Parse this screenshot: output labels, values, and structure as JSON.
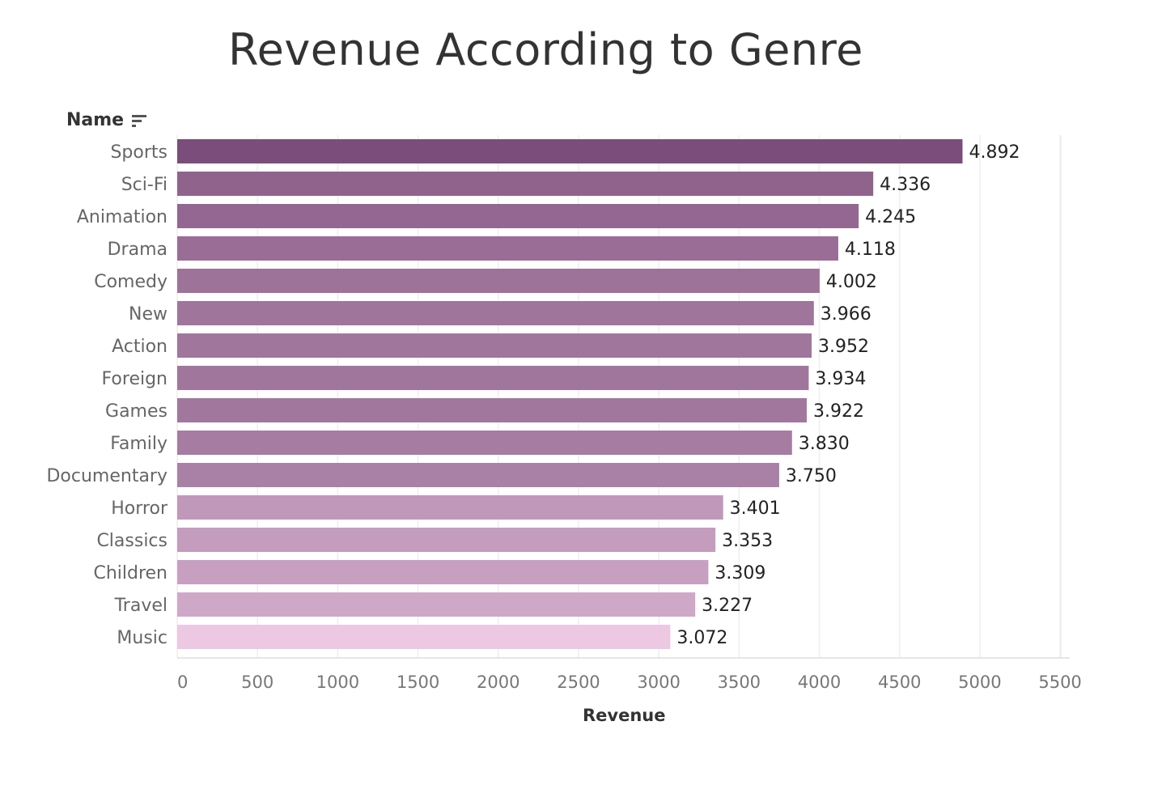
{
  "header": {
    "row_field_label": "Name",
    "sort_icon": "sort-descending-icon"
  },
  "colors": {
    "bar_max": "#7b4d7a",
    "bar_min": "#ecc8e3",
    "grid": "#eeeeee",
    "axis": "#dddddd",
    "category_text": "#666666",
    "value_text": "#222222",
    "title_text": "#333333"
  },
  "chart_data": {
    "type": "bar",
    "orientation": "horizontal",
    "title": "Revenue According to Genre",
    "xlabel": "Revenue",
    "ylabel": "Name",
    "categories": [
      "Sports",
      "Sci-Fi",
      "Animation",
      "Drama",
      "Comedy",
      "New",
      "Action",
      "Foreign",
      "Games",
      "Family",
      "Documentary",
      "Horror",
      "Classics",
      "Children",
      "Travel",
      "Music"
    ],
    "values": [
      4892,
      4336,
      4245,
      4118,
      4002,
      3966,
      3952,
      3934,
      3922,
      3830,
      3750,
      3401,
      3353,
      3309,
      3227,
      3072
    ],
    "value_labels": [
      "4.892",
      "4.336",
      "4.245",
      "4.118",
      "4.002",
      "3.966",
      "3.952",
      "3.934",
      "3.922",
      "3.830",
      "3.750",
      "3.401",
      "3.353",
      "3.309",
      "3.227",
      "3.072"
    ],
    "xlim": [
      0,
      5550
    ],
    "xticks": [
      0,
      500,
      1000,
      1500,
      2000,
      2500,
      3000,
      3500,
      4000,
      4500,
      5000,
      5500
    ],
    "xtick_labels": [
      "0",
      "500",
      "1000",
      "1500",
      "2000",
      "2500",
      "3000",
      "3500",
      "4000",
      "4500",
      "5000",
      "5500"
    ],
    "grid": true,
    "legend": "none"
  }
}
